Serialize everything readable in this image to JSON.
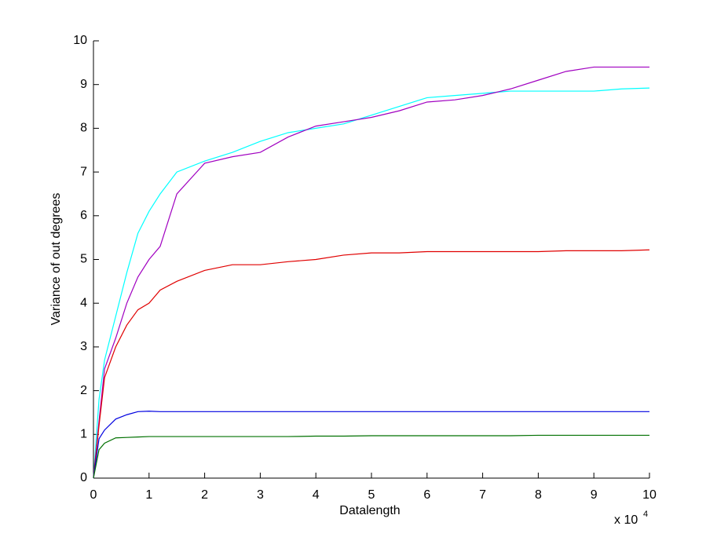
{
  "chart_data": {
    "type": "line",
    "xlabel": "Datalength",
    "ylabel": "Variance of out degrees",
    "x_multiplier": {
      "base": "x 10",
      "exponent": "4"
    },
    "x": [
      0,
      0.1,
      0.2,
      0.4,
      0.6,
      0.8,
      1,
      1.2,
      1.5,
      2,
      2.5,
      3,
      3.5,
      4,
      4.5,
      5,
      5.5,
      6,
      6.5,
      7,
      7.5,
      8,
      8.5,
      9,
      9.5,
      10
    ],
    "series": [
      {
        "color": "#00ffff",
        "values": [
          0,
          1.8,
          2.7,
          3.7,
          4.7,
          5.6,
          6.1,
          6.5,
          7.0,
          7.25,
          7.45,
          7.7,
          7.9,
          8.0,
          8.1,
          8.3,
          8.5,
          8.7,
          8.75,
          8.8,
          8.85,
          8.85,
          8.85,
          8.85,
          8.9,
          8.92
        ]
      },
      {
        "color": "#a000c0",
        "values": [
          0,
          1.3,
          2.5,
          3.2,
          4.0,
          4.6,
          5.0,
          5.3,
          6.5,
          7.2,
          7.35,
          7.45,
          7.8,
          8.05,
          8.15,
          8.25,
          8.4,
          8.6,
          8.65,
          8.75,
          8.9,
          9.1,
          9.3,
          9.4,
          9.4,
          9.4
        ]
      },
      {
        "color": "#e00000",
        "values": [
          0,
          1.2,
          2.3,
          3.0,
          3.5,
          3.85,
          4.0,
          4.3,
          4.5,
          4.75,
          4.88,
          4.88,
          4.95,
          5.0,
          5.1,
          5.15,
          5.15,
          5.18,
          5.18,
          5.18,
          5.18,
          5.18,
          5.2,
          5.2,
          5.2,
          5.22
        ]
      },
      {
        "color": "#0000e0",
        "values": [
          0,
          0.9,
          1.1,
          1.35,
          1.45,
          1.52,
          1.53,
          1.52,
          1.52,
          1.52,
          1.52,
          1.52,
          1.52,
          1.52,
          1.52,
          1.52,
          1.52,
          1.52,
          1.52,
          1.52,
          1.52,
          1.52,
          1.52,
          1.52,
          1.52,
          1.52
        ]
      },
      {
        "color": "#007000",
        "values": [
          0,
          0.65,
          0.8,
          0.92,
          0.93,
          0.94,
          0.95,
          0.95,
          0.95,
          0.95,
          0.95,
          0.95,
          0.95,
          0.96,
          0.96,
          0.97,
          0.97,
          0.97,
          0.97,
          0.97,
          0.97,
          0.98,
          0.98,
          0.98,
          0.98,
          0.98
        ]
      }
    ],
    "xlim": [
      0,
      10
    ],
    "xticks": [
      0,
      1,
      2,
      3,
      4,
      5,
      6,
      7,
      8,
      9,
      10
    ],
    "ylim": [
      0,
      10
    ],
    "yticks": [
      0,
      1,
      2,
      3,
      4,
      5,
      6,
      7,
      8,
      9,
      10
    ],
    "grid": false
  }
}
